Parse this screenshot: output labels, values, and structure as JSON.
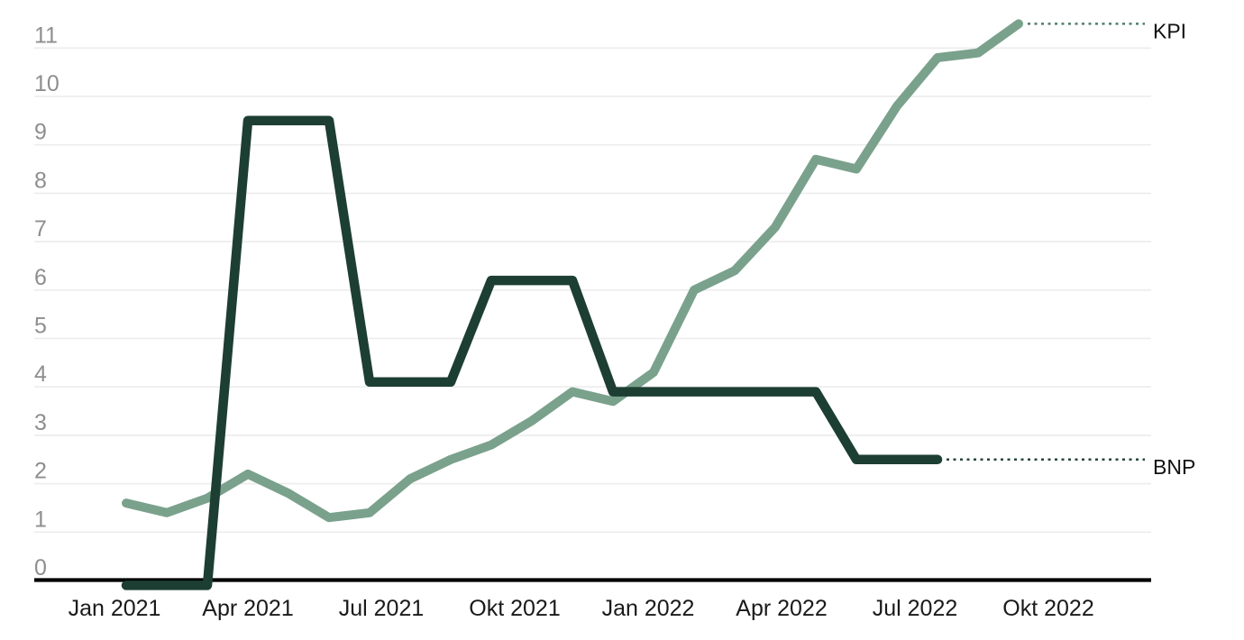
{
  "chart_data": {
    "type": "line",
    "title": "",
    "x_first_point": "Jan 2021",
    "x_interval": "1 month",
    "x_tick_labels": [
      "Jan 2021",
      "Apr 2021",
      "Jul 2021",
      "Okt 2021",
      "Jan 2022",
      "Apr 2022",
      "Jul 2022",
      "Okt 2022"
    ],
    "x_tick_month_indices": [
      0,
      3,
      6,
      9,
      12,
      15,
      18,
      21
    ],
    "y_tick_labels": [
      "0",
      "1",
      "2",
      "3",
      "4",
      "5",
      "6",
      "7",
      "8",
      "9",
      "10",
      "11"
    ],
    "y_ticks": [
      0,
      1,
      2,
      3,
      4,
      5,
      6,
      7,
      8,
      9,
      10,
      11
    ],
    "ylim": [
      -0.55,
      12.0
    ],
    "grid": "horizontal-only",
    "legend_position": "right-end-of-line",
    "series": [
      {
        "name": "KPI",
        "color": "#7AA18C",
        "leader_color": "#4E8168",
        "values": [
          1.6,
          1.4,
          1.7,
          2.2,
          1.8,
          1.3,
          1.4,
          2.1,
          2.5,
          2.8,
          3.3,
          3.9,
          3.7,
          4.3,
          6.0,
          6.4,
          7.3,
          8.7,
          8.5,
          9.8,
          10.8,
          10.9,
          11.5
        ]
      },
      {
        "name": "BNP",
        "color": "#1D3E33",
        "leader_color": "#27473B",
        "values": [
          -0.1,
          -0.1,
          -0.1,
          9.5,
          9.5,
          9.5,
          4.1,
          4.1,
          4.1,
          6.2,
          6.2,
          6.2,
          3.9,
          3.9,
          3.9,
          3.9,
          3.9,
          3.9,
          2.5,
          2.5,
          2.5
        ]
      }
    ],
    "colors": {
      "background": "#FFFFFF",
      "grid": "#ECECEC",
      "axis": "#000000",
      "y_tick_text": "#8E8E8E",
      "x_tick_text": "#1A1A1A",
      "series_label_text": "#111111"
    }
  }
}
